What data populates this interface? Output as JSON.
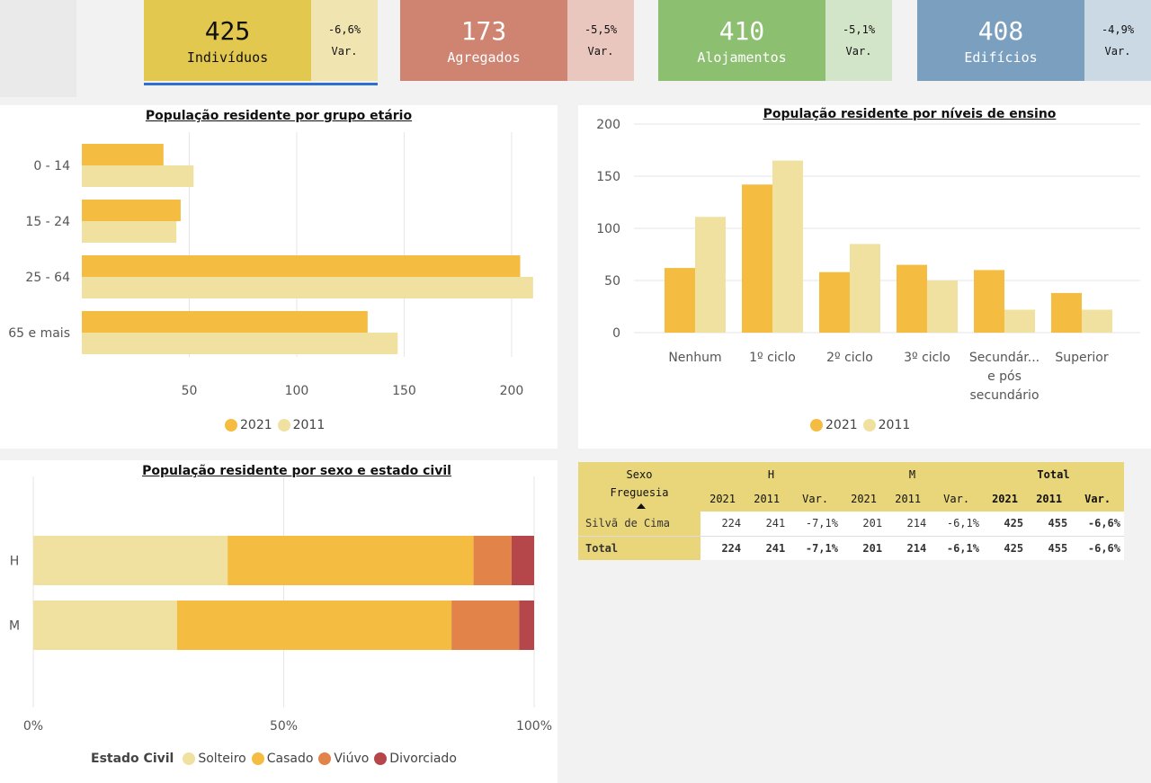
{
  "kpis": [
    {
      "value": "425",
      "label": "Indivíduos",
      "var_value": "-6,6%",
      "var_label": "Var.",
      "main_bg": "#e2c84e",
      "var_bg": "#f0e4b0",
      "text_color": "#111111"
    },
    {
      "value": "173",
      "label": "Agregados",
      "var_value": "-5,5%",
      "var_label": "Var.",
      "main_bg": "#cf8471",
      "var_bg": "#e9c6be",
      "text_color": "#ffffff"
    },
    {
      "value": "410",
      "label": "Alojamentos",
      "var_value": "-5,1%",
      "var_label": "Var.",
      "main_bg": "#8cbf70",
      "var_bg": "#d3e5c8",
      "text_color": "#ffffff"
    },
    {
      "value": "408",
      "label": "Edifícios",
      "var_value": "-4,9%",
      "var_label": "Var.",
      "main_bg": "#7ba0bf",
      "var_bg": "#cbd9e4",
      "text_color": "#ffffff"
    }
  ],
  "colors": {
    "y2021": "#f4bd41",
    "y2011": "#f0e1a0",
    "solteiro": "#f0e1a0",
    "casado": "#f4bd41",
    "viuvo": "#e2834a",
    "divorciado": "#b5474b"
  },
  "chart_data": [
    {
      "type": "bar",
      "orientation": "horizontal",
      "title": "População residente por grupo etário",
      "categories": [
        "0 - 14",
        "15 - 24",
        "25 - 64",
        "65 e mais"
      ],
      "series": [
        {
          "name": "2021",
          "values": [
            38,
            46,
            204,
            133
          ]
        },
        {
          "name": "2011",
          "values": [
            52,
            44,
            210,
            147
          ]
        }
      ],
      "xlim": [
        0,
        213
      ],
      "xticks": [
        50,
        100,
        150,
        200
      ],
      "grid": true,
      "legend": "bottom"
    },
    {
      "type": "bar",
      "title": "População residente por níveis de ensino",
      "categories": [
        "Nenhum",
        "1º ciclo",
        "2º ciclo",
        "3º ciclo",
        "Secundár... e pós secundário",
        "Superior"
      ],
      "series": [
        {
          "name": "2021",
          "values": [
            62,
            142,
            58,
            65,
            60,
            38
          ]
        },
        {
          "name": "2011",
          "values": [
            111,
            165,
            85,
            50,
            22,
            22
          ]
        }
      ],
      "ylim": [
        0,
        200
      ],
      "yticks": [
        0,
        50,
        100,
        150,
        200
      ],
      "grid": true,
      "legend": "bottom"
    },
    {
      "type": "bar",
      "orientation": "horizontal",
      "stacked": "percent",
      "title": "População residente por sexo e estado civil",
      "categories": [
        "H",
        "M"
      ],
      "series": [
        {
          "name": "Solteiro",
          "values": [
            38.8,
            28.7
          ]
        },
        {
          "name": "Casado",
          "values": [
            49.1,
            54.8
          ]
        },
        {
          "name": "Viúvo",
          "values": [
            7.6,
            13.5
          ]
        },
        {
          "name": "Divorciado",
          "values": [
            4.5,
            3.0
          ]
        }
      ],
      "xticks": [
        "0%",
        "50%",
        "100%"
      ],
      "legend_title": "Estado Civil",
      "grid": true,
      "legend": "bottom"
    }
  ],
  "matrix": {
    "header1": {
      "sexo": "Sexo",
      "h": "H",
      "m": "M",
      "total": "Total"
    },
    "header2": {
      "freguesia": "Freguesia",
      "cols": [
        "2021",
        "2011",
        "Var.",
        "2021",
        "2011",
        "Var.",
        "2021",
        "2011",
        "Var."
      ]
    },
    "rows": [
      {
        "name": "Silvã de Cima",
        "cells": [
          "224",
          "241",
          "-7,1%",
          "201",
          "214",
          "-6,1%",
          "425",
          "455",
          "-6,6%"
        ]
      },
      {
        "name": "Total",
        "cells": [
          "224",
          "241",
          "-7,1%",
          "201",
          "214",
          "-6,1%",
          "425",
          "455",
          "-6,6%"
        ]
      }
    ]
  }
}
